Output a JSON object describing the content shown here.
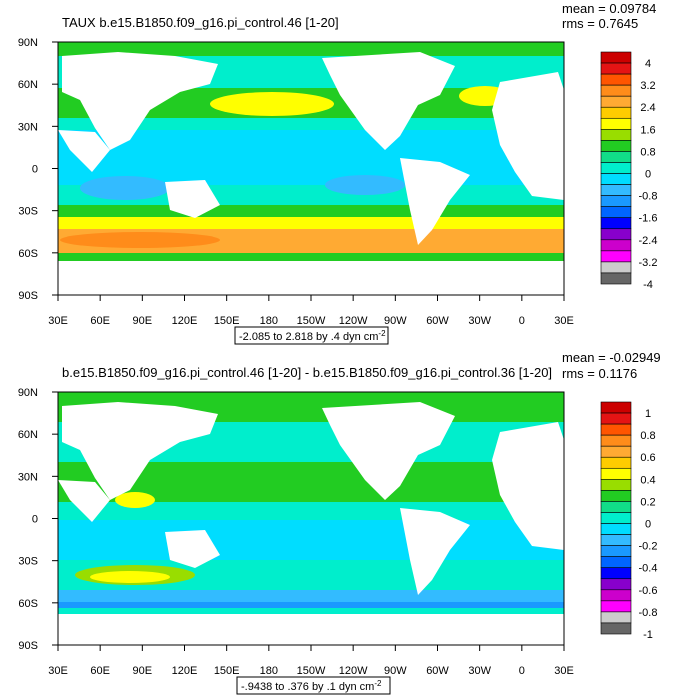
{
  "panels": [
    {
      "id": "top",
      "title": "TAUX b.e15.B1850.f09_g16.pi_control.46 [1-20]",
      "mean_label": "mean = 0.09784",
      "rms_label": "rms = 0.7645",
      "range_label": "-2.085 to 2.818 by .4 dyn cm",
      "range_exp": "-2",
      "colorbar_labels": [
        "4",
        "3.2",
        "2.4",
        "1.6",
        "0.8",
        "0",
        "-0.8",
        "-1.6",
        "-2.4",
        "-3.2",
        "-4"
      ],
      "colorbar_colors": [
        "#cc0000",
        "#e41414",
        "#ff5500",
        "#ff8c1a",
        "#ffaa33",
        "#ffcc00",
        "#ffff00",
        "#99dd00",
        "#22cc22",
        "#11dd88",
        "#00eecc",
        "#00ddff",
        "#33bbff",
        "#1a99ff",
        "#0066ff",
        "#0000ff",
        "#8800cc",
        "#cc00cc",
        "#ff00ff",
        "#cccccc",
        "#666666"
      ]
    },
    {
      "id": "bottom",
      "title": "b.e15.B1850.f09_g16.pi_control.46 [1-20] - b.e15.B1850.f09_g16.pi_control.36 [1-20]",
      "mean_label": "mean = -0.02949",
      "rms_label": "rms = 0.1176",
      "range_label": "-.9438 to .376 by .1 dyn cm",
      "range_exp": "-2",
      "colorbar_labels": [
        "1",
        "0.8",
        "0.6",
        "0.4",
        "0.2",
        "0",
        "-0.2",
        "-0.4",
        "-0.6",
        "-0.8",
        "-1"
      ],
      "colorbar_colors": [
        "#cc0000",
        "#e41414",
        "#ff5500",
        "#ff8c1a",
        "#ffaa33",
        "#ffcc00",
        "#ffff00",
        "#99dd00",
        "#22cc22",
        "#11dd88",
        "#00eecc",
        "#00ddff",
        "#33bbff",
        "#1a99ff",
        "#0066ff",
        "#0000ff",
        "#8800cc",
        "#cc00cc",
        "#ff00ff",
        "#cccccc",
        "#666666"
      ]
    }
  ],
  "lat_labels": [
    "90N",
    "60N",
    "30N",
    "0",
    "30S",
    "60S",
    "90S"
  ],
  "lon_labels": [
    "30E",
    "60E",
    "90E",
    "120E",
    "150E",
    "180",
    "150W",
    "120W",
    "90W",
    "60W",
    "30W",
    "0",
    "30E"
  ]
}
